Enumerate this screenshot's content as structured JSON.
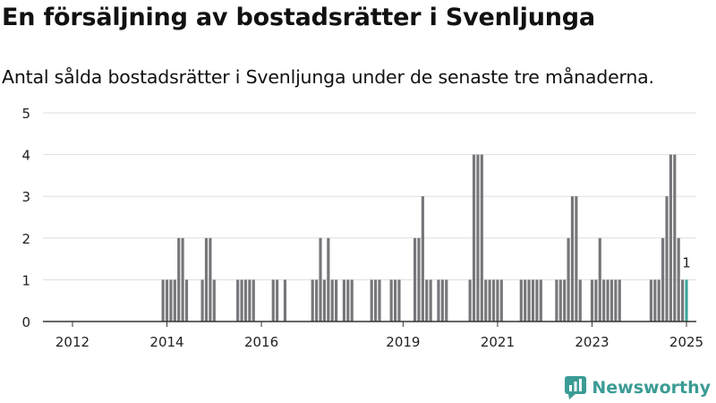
{
  "title": "En försäljning av bostadsrätter i Svenljunga",
  "subtitle": "Antal sålda bostadsrätter i Svenljunga under de senaste tre månaderna.",
  "brand": {
    "name": "Newsworthy",
    "logo_icon": "newsworthy-logo-icon"
  },
  "colors": {
    "bar": "#76767b",
    "highlight": "#3aa69d",
    "grid": "#dddddd",
    "axis": "#333333",
    "text": "#222222"
  },
  "chart_data": {
    "type": "bar",
    "x_unit": "month",
    "x_start": "2011-06",
    "x_end": "2025-03",
    "xticks": [
      "2012",
      "2014",
      "2016",
      "2019",
      "2021",
      "2023",
      "2025"
    ],
    "yticks": [
      "0",
      "1",
      "2",
      "3",
      "4",
      "5"
    ],
    "ylim": [
      0,
      5
    ],
    "grid": true,
    "annotation": {
      "month": "2025-01",
      "label": "1"
    },
    "series": [
      {
        "values": {
          "2013-12": 1,
          "2014-01": 1,
          "2014-02": 1,
          "2014-03": 1,
          "2014-04": 2,
          "2014-05": 2,
          "2014-06": 1,
          "2014-10": 1,
          "2014-11": 2,
          "2014-12": 2,
          "2015-01": 1,
          "2015-07": 1,
          "2015-08": 1,
          "2015-09": 1,
          "2015-10": 1,
          "2015-11": 1,
          "2016-04": 1,
          "2016-05": 1,
          "2016-07": 1,
          "2017-02": 1,
          "2017-03": 1,
          "2017-04": 2,
          "2017-05": 1,
          "2017-06": 2,
          "2017-07": 1,
          "2017-08": 1,
          "2017-10": 1,
          "2017-11": 1,
          "2017-12": 1,
          "2018-05": 1,
          "2018-06": 1,
          "2018-07": 1,
          "2018-10": 1,
          "2018-11": 1,
          "2018-12": 1,
          "2019-04": 2,
          "2019-05": 2,
          "2019-06": 3,
          "2019-07": 1,
          "2019-08": 1,
          "2019-10": 1,
          "2019-11": 1,
          "2019-12": 1,
          "2020-06": 1,
          "2020-07": 4,
          "2020-08": 4,
          "2020-09": 4,
          "2020-10": 1,
          "2020-11": 1,
          "2020-12": 1,
          "2021-01": 1,
          "2021-02": 1,
          "2021-07": 1,
          "2021-08": 1,
          "2021-09": 1,
          "2021-10": 1,
          "2021-11": 1,
          "2021-12": 1,
          "2022-04": 1,
          "2022-05": 1,
          "2022-06": 1,
          "2022-07": 2,
          "2022-08": 3,
          "2022-09": 3,
          "2022-10": 1,
          "2023-01": 1,
          "2023-02": 1,
          "2023-03": 2,
          "2023-04": 1,
          "2023-05": 1,
          "2023-06": 1,
          "2023-07": 1,
          "2023-08": 1,
          "2024-04": 1,
          "2024-05": 1,
          "2024-06": 1,
          "2024-07": 2,
          "2024-08": 3,
          "2024-09": 4,
          "2024-10": 4,
          "2024-11": 2,
          "2024-12": 1,
          "2025-01": 1
        }
      }
    ]
  }
}
